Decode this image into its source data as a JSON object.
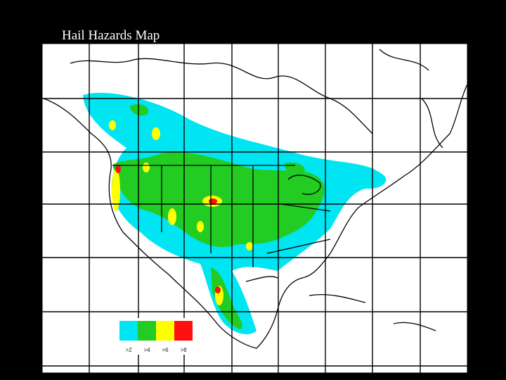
{
  "title": "Hail Hazards Map",
  "legend": [
    {
      "label": ">2",
      "color": "#00e5f2"
    },
    {
      "label": ">4",
      "color": "#22cc22"
    },
    {
      "label": ">6",
      "color": "#ffff00"
    },
    {
      "label": ">8",
      "color": "#ff1010"
    }
  ]
}
